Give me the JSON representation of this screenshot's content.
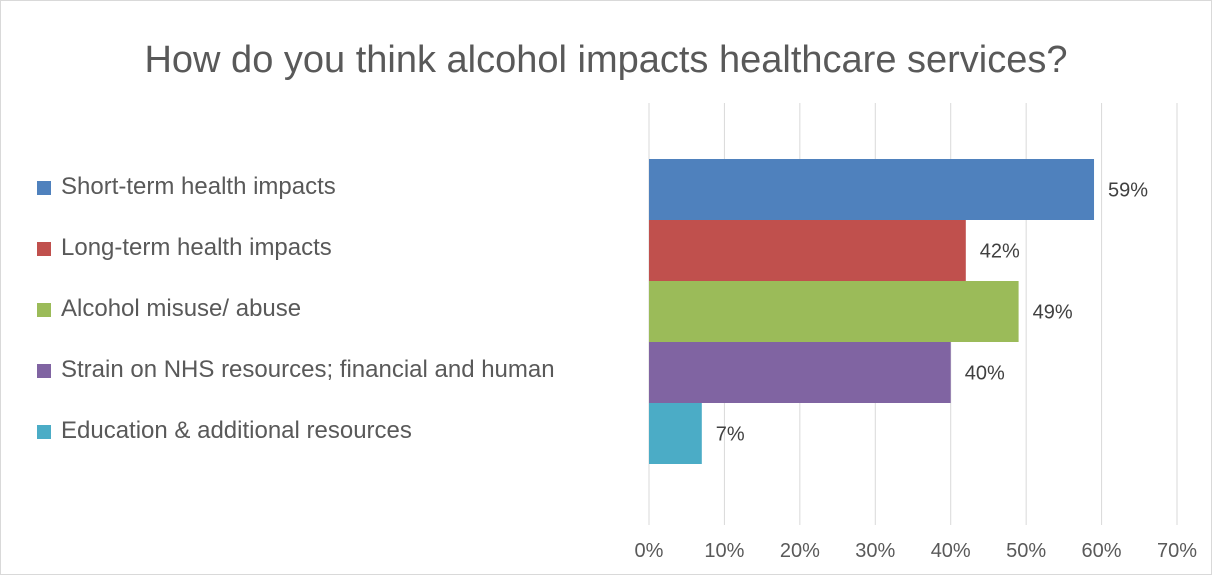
{
  "chart_data": {
    "type": "bar",
    "orientation": "horizontal",
    "title": "How do you think alcohol impacts healthcare services?",
    "categories": [
      "Short-term health impacts",
      "Long-term health impacts",
      "Alcohol misuse/ abuse",
      "Strain on NHS resources; financial and human",
      "Education & additional resources"
    ],
    "values": [
      59,
      42,
      49,
      40,
      7
    ],
    "value_labels": [
      "59%",
      "42%",
      "49%",
      "40%",
      "7%"
    ],
    "colors": [
      "#4f81bd",
      "#c0504d",
      "#9bbb59",
      "#8064a2",
      "#4bacc6"
    ],
    "xlim": [
      0,
      70
    ],
    "x_ticks": [
      0,
      10,
      20,
      30,
      40,
      50,
      60,
      70
    ],
    "x_tick_labels": [
      "0%",
      "10%",
      "20%",
      "30%",
      "40%",
      "50%",
      "60%",
      "70%"
    ],
    "grid": "vertical",
    "legend_position": "left"
  }
}
